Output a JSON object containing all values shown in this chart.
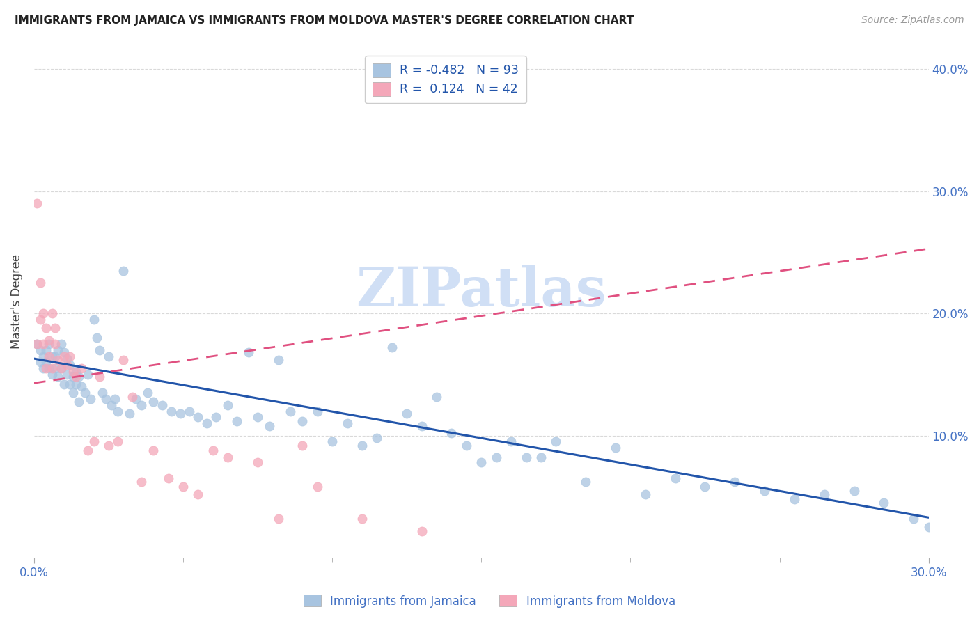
{
  "title": "IMMIGRANTS FROM JAMAICA VS IMMIGRANTS FROM MOLDOVA MASTER'S DEGREE CORRELATION CHART",
  "source": "Source: ZipAtlas.com",
  "ylabel": "Master's Degree",
  "xlim": [
    0.0,
    0.3
  ],
  "ylim": [
    0.0,
    0.42
  ],
  "xtick_major": [
    0.0,
    0.3
  ],
  "xtick_minor": [
    0.05,
    0.1,
    0.15,
    0.2,
    0.25
  ],
  "yticks": [
    0.1,
    0.2,
    0.3,
    0.4
  ],
  "tick_color": "#4472c4",
  "grid_color": "#d9d9d9",
  "background_color": "#ffffff",
  "jamaica_color": "#a8c4e0",
  "moldova_color": "#f4a7b9",
  "jamaica_line_color": "#2255aa",
  "moldova_line_color": "#e05080",
  "watermark_text": "ZIPatlas",
  "watermark_color": "#d0dff5",
  "legend_r_jamaica": "-0.482",
  "legend_n_jamaica": "93",
  "legend_r_moldova": "0.124",
  "legend_n_moldova": "42",
  "jamaica_label": "Immigrants from Jamaica",
  "moldova_label": "Immigrants from Moldova",
  "jamaica_line_x0": 0.0,
  "jamaica_line_y0": 0.163,
  "jamaica_line_x1": 0.3,
  "jamaica_line_y1": 0.033,
  "moldova_line_x0": 0.0,
  "moldova_line_y0": 0.143,
  "moldova_line_x1": 0.3,
  "moldova_line_y1": 0.253,
  "jamaica_scatter_x": [
    0.001,
    0.002,
    0.002,
    0.003,
    0.003,
    0.004,
    0.004,
    0.005,
    0.005,
    0.006,
    0.006,
    0.007,
    0.007,
    0.008,
    0.008,
    0.009,
    0.009,
    0.01,
    0.01,
    0.011,
    0.011,
    0.012,
    0.012,
    0.013,
    0.013,
    0.014,
    0.014,
    0.015,
    0.015,
    0.016,
    0.017,
    0.018,
    0.019,
    0.02,
    0.021,
    0.022,
    0.023,
    0.024,
    0.025,
    0.026,
    0.027,
    0.028,
    0.03,
    0.032,
    0.034,
    0.036,
    0.038,
    0.04,
    0.043,
    0.046,
    0.049,
    0.052,
    0.055,
    0.058,
    0.061,
    0.065,
    0.068,
    0.072,
    0.075,
    0.079,
    0.082,
    0.086,
    0.09,
    0.095,
    0.1,
    0.105,
    0.11,
    0.115,
    0.12,
    0.125,
    0.13,
    0.135,
    0.14,
    0.145,
    0.15,
    0.155,
    0.16,
    0.165,
    0.17,
    0.175,
    0.185,
    0.195,
    0.205,
    0.215,
    0.225,
    0.235,
    0.245,
    0.255,
    0.265,
    0.275,
    0.285,
    0.295,
    0.3
  ],
  "jamaica_scatter_y": [
    0.175,
    0.17,
    0.16,
    0.165,
    0.155,
    0.17,
    0.16,
    0.175,
    0.155,
    0.165,
    0.15,
    0.165,
    0.155,
    0.17,
    0.148,
    0.175,
    0.155,
    0.168,
    0.142,
    0.163,
    0.15,
    0.158,
    0.142,
    0.148,
    0.135,
    0.152,
    0.142,
    0.148,
    0.128,
    0.14,
    0.135,
    0.15,
    0.13,
    0.195,
    0.18,
    0.17,
    0.135,
    0.13,
    0.165,
    0.125,
    0.13,
    0.12,
    0.235,
    0.118,
    0.13,
    0.125,
    0.135,
    0.128,
    0.125,
    0.12,
    0.118,
    0.12,
    0.115,
    0.11,
    0.115,
    0.125,
    0.112,
    0.168,
    0.115,
    0.108,
    0.162,
    0.12,
    0.112,
    0.12,
    0.095,
    0.11,
    0.092,
    0.098,
    0.172,
    0.118,
    0.108,
    0.132,
    0.102,
    0.092,
    0.078,
    0.082,
    0.095,
    0.082,
    0.082,
    0.095,
    0.062,
    0.09,
    0.052,
    0.065,
    0.058,
    0.062,
    0.055,
    0.048,
    0.052,
    0.055,
    0.045,
    0.032,
    0.025
  ],
  "moldova_scatter_x": [
    0.001,
    0.001,
    0.002,
    0.002,
    0.003,
    0.003,
    0.004,
    0.004,
    0.005,
    0.005,
    0.006,
    0.006,
    0.007,
    0.007,
    0.008,
    0.009,
    0.01,
    0.011,
    0.012,
    0.013,
    0.014,
    0.016,
    0.018,
    0.02,
    0.022,
    0.025,
    0.028,
    0.03,
    0.033,
    0.036,
    0.04,
    0.045,
    0.05,
    0.055,
    0.06,
    0.065,
    0.075,
    0.082,
    0.09,
    0.095,
    0.11,
    0.13
  ],
  "moldova_scatter_y": [
    0.29,
    0.175,
    0.225,
    0.195,
    0.2,
    0.175,
    0.188,
    0.155,
    0.178,
    0.165,
    0.2,
    0.155,
    0.175,
    0.188,
    0.162,
    0.155,
    0.165,
    0.158,
    0.165,
    0.152,
    0.148,
    0.155,
    0.088,
    0.095,
    0.148,
    0.092,
    0.095,
    0.162,
    0.132,
    0.062,
    0.088,
    0.065,
    0.058,
    0.052,
    0.088,
    0.082,
    0.078,
    0.032,
    0.092,
    0.058,
    0.032,
    0.022
  ]
}
